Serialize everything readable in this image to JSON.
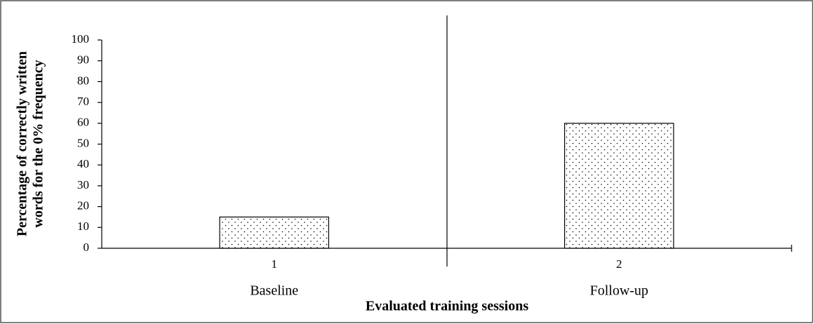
{
  "chart_data": {
    "type": "bar",
    "y_label": [
      "Percentage of correctly written",
      "words for the 0% frequency"
    ],
    "x_label": "Evaluated training sessions",
    "categories": [
      "1",
      "2"
    ],
    "phases": [
      "Baseline",
      "Follow-up"
    ],
    "values": [
      15,
      60
    ],
    "color": "#000000",
    "ylim": [
      0,
      100
    ],
    "yticks": [
      0,
      10,
      20,
      30,
      40,
      50,
      60,
      70,
      80,
      90,
      100
    ],
    "grid": false
  }
}
